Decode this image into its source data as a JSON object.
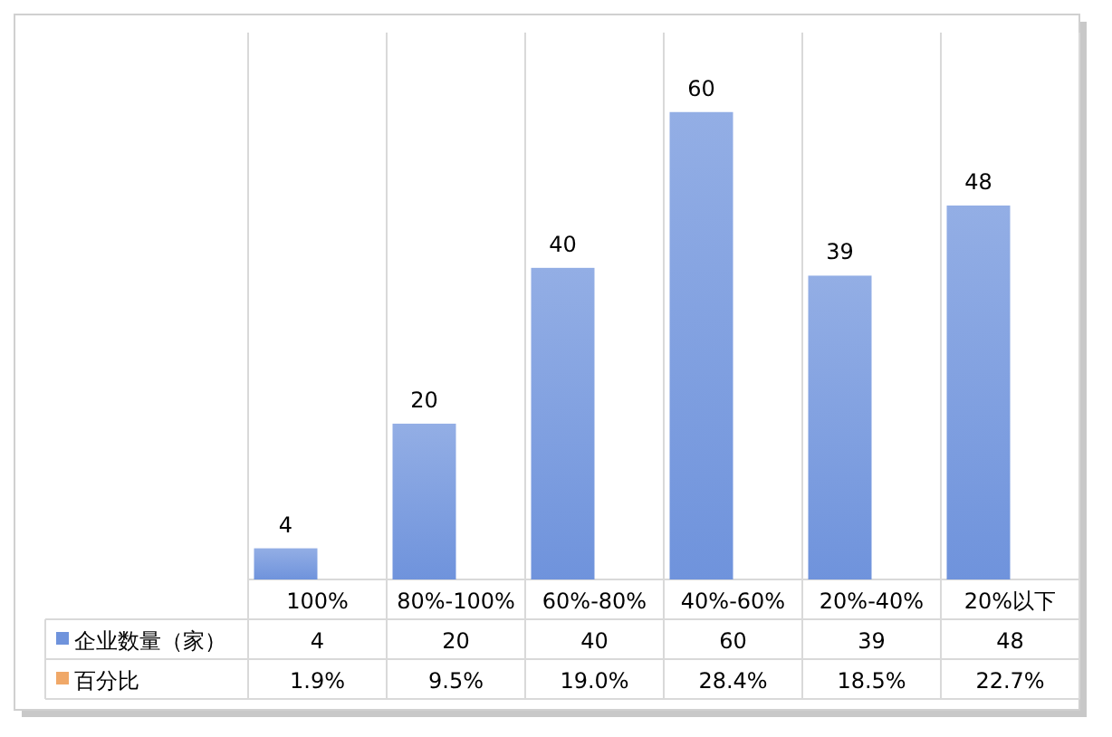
{
  "chart_data": {
    "type": "bar",
    "categories": [
      "100%",
      "80%-100%",
      "60%-80%",
      "40%-60%",
      "20%-40%",
      "20%以下"
    ],
    "series": [
      {
        "name": "企业数量（家）",
        "color": "#6f93dc",
        "values": [
          4,
          20,
          40,
          60,
          39,
          48
        ],
        "value_labels": [
          "4",
          "20",
          "40",
          "60",
          "39",
          "48"
        ]
      },
      {
        "name": "百分比",
        "color": "#f0a868",
        "values": [
          null,
          null,
          null,
          null,
          null,
          null
        ],
        "value_labels": [
          "1.9%",
          "9.5%",
          "19.0%",
          "28.4%",
          "18.5%",
          "22.7%"
        ]
      }
    ],
    "grid": "x"
  }
}
